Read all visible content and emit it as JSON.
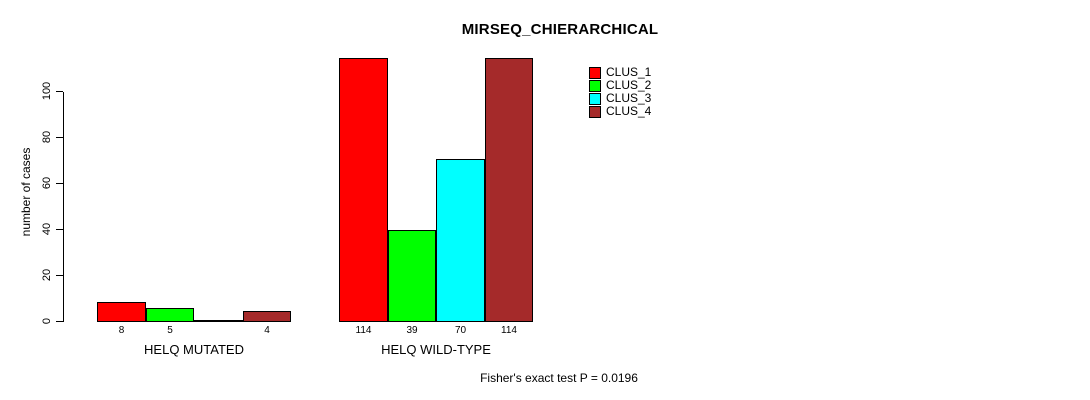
{
  "chart_data": {
    "type": "bar",
    "title": "MIRSEQ_CHIERARCHICAL",
    "ylabel": "number of cases",
    "xlabel": "",
    "ylim": [
      0,
      100
    ],
    "yticks": [
      0,
      20,
      40,
      60,
      80,
      100
    ],
    "grid": false,
    "categories": [
      "HELQ MUTATED",
      "HELQ WILD-TYPE"
    ],
    "series": [
      {
        "name": "CLUS_1",
        "color": "#ff0000",
        "values": [
          8,
          114
        ]
      },
      {
        "name": "CLUS_2",
        "color": "#00ff00",
        "values": [
          5,
          39
        ]
      },
      {
        "name": "CLUS_3",
        "color": "#00ffff",
        "values": [
          0,
          70
        ]
      },
      {
        "name": "CLUS_4",
        "color": "#a52a2a",
        "values": [
          4,
          114
        ]
      }
    ],
    "bar_value_labels": [
      [
        "8",
        "5",
        "",
        "4"
      ],
      [
        "114",
        "39",
        "70",
        "114"
      ]
    ],
    "legend": {
      "position": "top-right",
      "entries": [
        "CLUS_1",
        "CLUS_2",
        "CLUS_3",
        "CLUS_4"
      ]
    },
    "annotation": "Fisher's exact test P = 0.0196"
  }
}
